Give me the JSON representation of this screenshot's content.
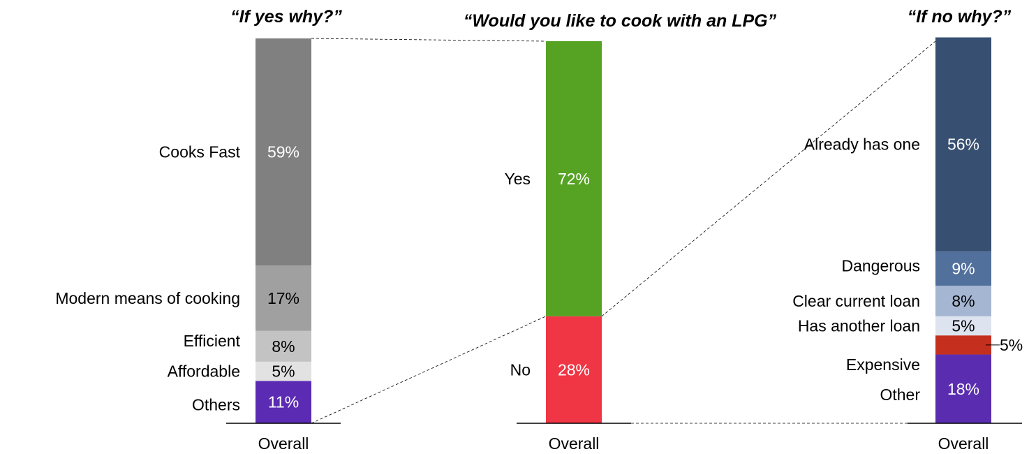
{
  "chart_data": [
    {
      "type": "bar",
      "stacked": true,
      "title": "“If yes why?”",
      "categories": [
        "Overall"
      ],
      "series": [
        {
          "name": "Others",
          "values": [
            11
          ],
          "color": "#5b2bb3",
          "value_color": "#ffffff"
        },
        {
          "name": "Affordable",
          "values": [
            5
          ],
          "color": "#e2e2e2",
          "value_color": "#000000"
        },
        {
          "name": "Efficient",
          "values": [
            8
          ],
          "color": "#c3c3c3",
          "value_color": "#000000"
        },
        {
          "name": "Modern means of cooking",
          "values": [
            17
          ],
          "color": "#a0a0a0",
          "value_color": "#000000"
        },
        {
          "name": "Cooks Fast",
          "values": [
            59
          ],
          "color": "#808080",
          "value_color": "#ffffff"
        }
      ],
      "ylim": [
        0,
        100
      ]
    },
    {
      "type": "bar",
      "stacked": true,
      "title": "“Would you like to cook with an LPG”",
      "categories": [
        "Overall"
      ],
      "series": [
        {
          "name": "No",
          "values": [
            28
          ],
          "color": "#f03545",
          "value_color": "#ffffff"
        },
        {
          "name": "Yes",
          "values": [
            72
          ],
          "color": "#56a324",
          "value_color": "#ffffff"
        }
      ],
      "ylim": [
        0,
        100
      ]
    },
    {
      "type": "bar",
      "stacked": true,
      "title": "“If no why?”",
      "categories": [
        "Overall"
      ],
      "series": [
        {
          "name": "Other",
          "values": [
            18
          ],
          "color": "#5a2db0",
          "value_color": "#ffffff"
        },
        {
          "name": "Expensive",
          "values": [
            5
          ],
          "color": "#c42f1e",
          "value_color": "#000000"
        },
        {
          "name": "Has another loan",
          "values": [
            5
          ],
          "color": "#dde4ef",
          "value_color": "#000000"
        },
        {
          "name": "Clear current loan",
          "values": [
            8
          ],
          "color": "#a5b6d3",
          "value_color": "#000000"
        },
        {
          "name": "Dangerous",
          "values": [
            9
          ],
          "color": "#52709c",
          "value_color": "#ffffff"
        },
        {
          "name": "Already has one",
          "values": [
            56
          ],
          "color": "#374f70",
          "value_color": "#ffffff"
        }
      ],
      "ylim": [
        0,
        100
      ]
    }
  ]
}
